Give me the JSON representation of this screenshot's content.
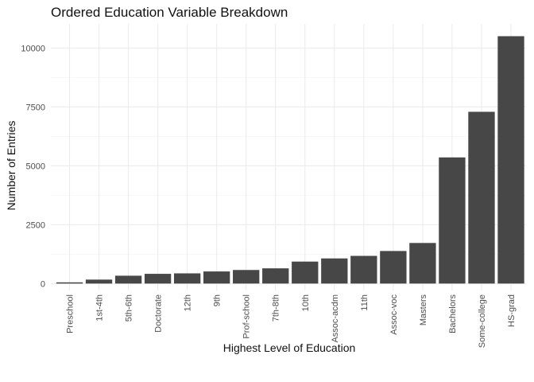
{
  "chart_data": {
    "type": "bar",
    "title": "Ordered Education Variable Breakdown",
    "xlabel": "Highest Level of Education",
    "ylabel": "Number of Entries",
    "categories": [
      "Preschool",
      "1st-4th",
      "5th-6th",
      "Doctorate",
      "12th",
      "9th",
      "Prof-school",
      "7th-8th",
      "10th",
      "Assoc-acdm",
      "11th",
      "Assoc-voc",
      "Masters",
      "Bachelors",
      "Some-college",
      "HS-grad"
    ],
    "values": [
      51,
      168,
      333,
      413,
      433,
      514,
      576,
      646,
      933,
      1067,
      1175,
      1382,
      1723,
      5355,
      7291,
      10501
    ],
    "ylim": [
      0,
      10500
    ],
    "yticks": [
      0,
      2500,
      5000,
      7500,
      10000
    ],
    "ytick_labels": [
      "0",
      "2500",
      "5000",
      "7500",
      "10000"
    ],
    "grid": true,
    "legend": "none",
    "bar_color": "#474747"
  }
}
